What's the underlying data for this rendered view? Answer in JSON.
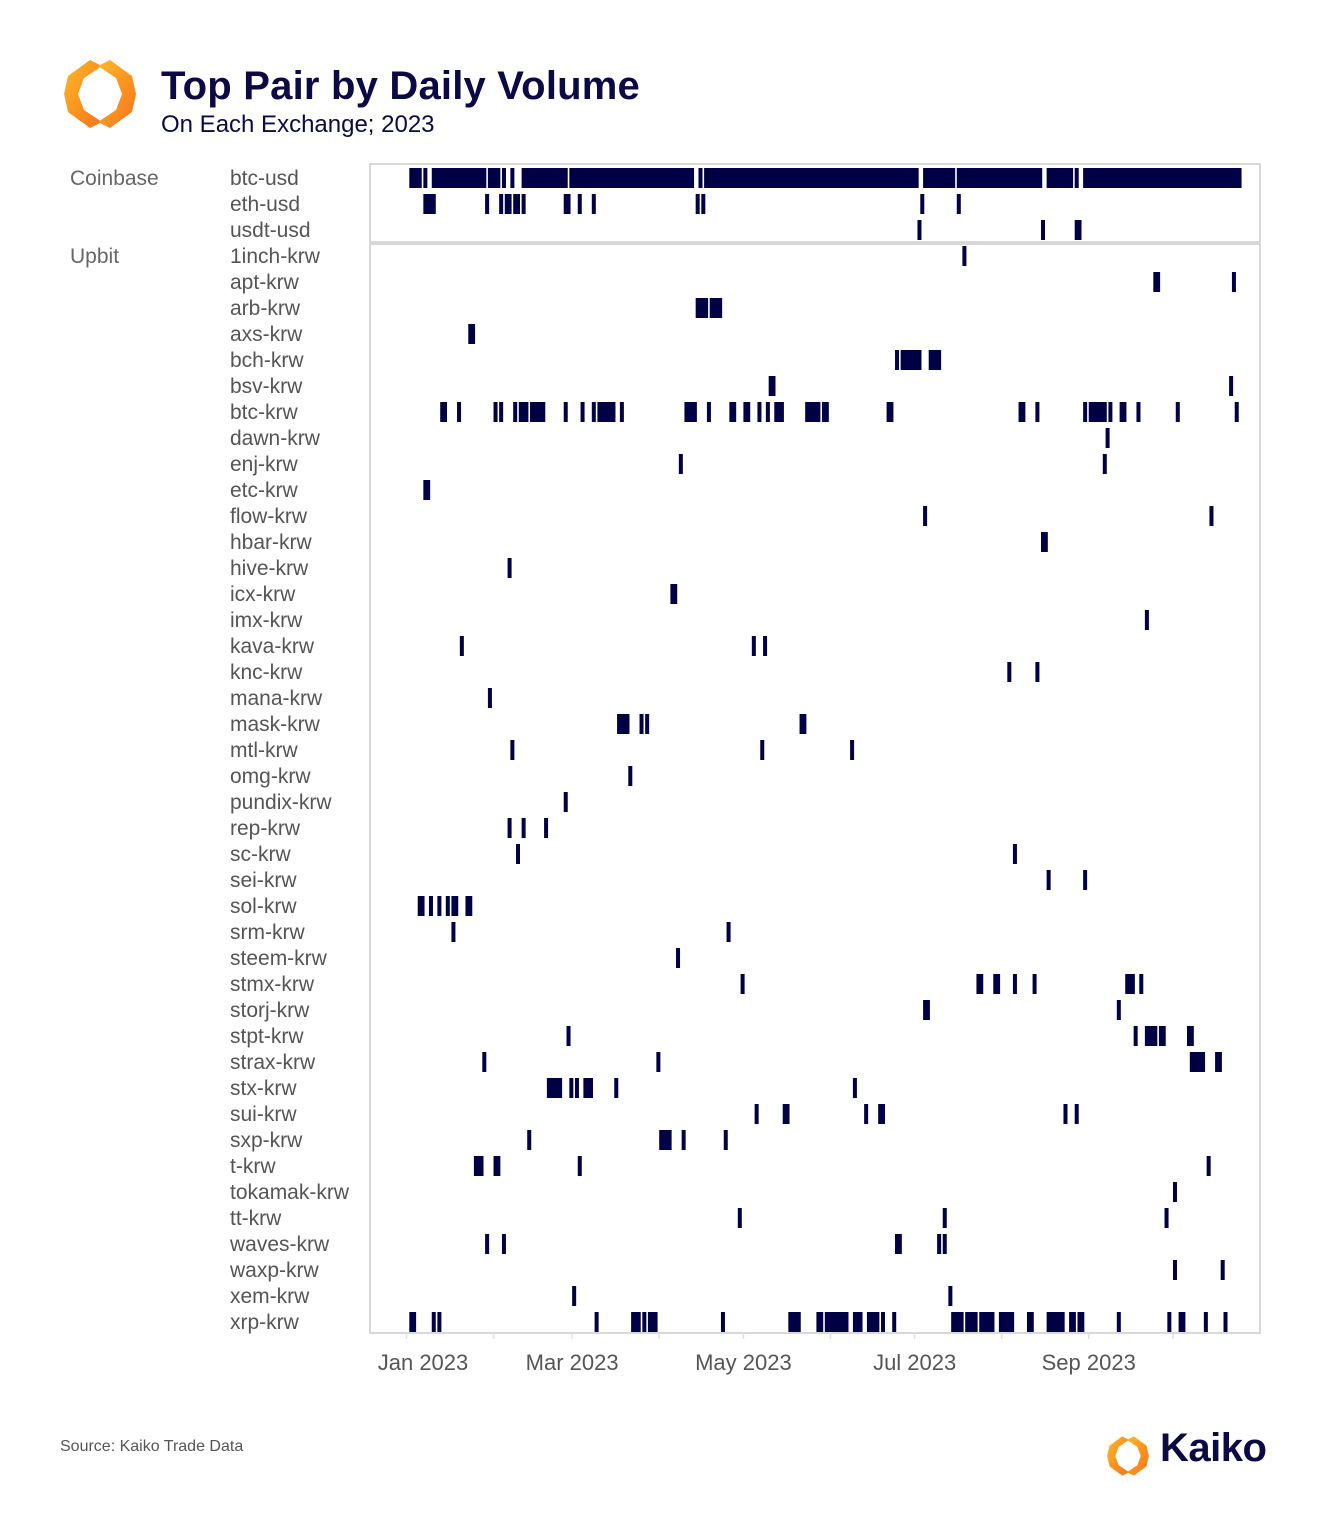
{
  "header": {
    "title": "Top Pair by Daily Volume",
    "subtitle": "On Each Exchange; 2023"
  },
  "footer": {
    "source": "Source: Kaiko Trade Data",
    "brand": "Kaiko"
  },
  "colors": {
    "bar": "#020044",
    "title": "#0b0a45",
    "label": "#555555",
    "frame": "#cccccc",
    "logo_light": "#fdb927",
    "logo_dark": "#f7731c"
  },
  "chart_data": {
    "type": "heatmap",
    "title": "Top Pair by Daily Volume",
    "subtitle": "On Each Exchange; 2023",
    "xlabel": "",
    "ylabel": "",
    "day_origin": "2023-01-01",
    "segment_format": "[start_day_index, length_in_days]",
    "x_ticks": [
      {
        "label": "Jan 2023",
        "day": 0
      },
      {
        "label": "Mar 2023",
        "day": 59
      },
      {
        "label": "May 2023",
        "day": 120
      },
      {
        "label": "Jul 2023",
        "day": 181
      },
      {
        "label": "Sep 2023",
        "day": 243
      }
    ],
    "month_starts": [
      0,
      31,
      59,
      90,
      120,
      151,
      181,
      212,
      243,
      273
    ],
    "xlim_days": [
      -13,
      304
    ],
    "groups": [
      {
        "exchange": "Coinbase",
        "rows": [
          {
            "pair": "btc-usd",
            "segments": [
              [
                1,
                4
              ],
              [
                6,
                1
              ],
              [
                9,
                19
              ],
              [
                29,
                4
              ],
              [
                34,
                1
              ],
              [
                37,
                1
              ],
              [
                41,
                16
              ],
              [
                58,
                44
              ],
              [
                104,
                1
              ],
              [
                106,
                76
              ],
              [
                184,
                11
              ],
              [
                196,
                30
              ],
              [
                228,
                9
              ],
              [
                238,
                1
              ],
              [
                241,
                56
              ]
            ]
          },
          {
            "pair": "eth-usd",
            "segments": [
              [
                6,
                4
              ],
              [
                28,
                1
              ],
              [
                33,
                1
              ],
              [
                35,
                2
              ],
              [
                38,
                2
              ],
              [
                41,
                1
              ],
              [
                56,
                2
              ],
              [
                61,
                1
              ],
              [
                66,
                1
              ],
              [
                103,
                1
              ],
              [
                105,
                1
              ],
              [
                183,
                1
              ],
              [
                196,
                1
              ]
            ]
          },
          {
            "pair": "usdt-usd",
            "segments": [
              [
                182,
                1
              ],
              [
                226,
                1
              ],
              [
                238,
                2
              ]
            ]
          }
        ]
      },
      {
        "exchange": "Upbit",
        "rows": [
          {
            "pair": "1inch-krw",
            "segments": [
              [
                198,
                1
              ]
            ]
          },
          {
            "pair": "apt-krw",
            "segments": [
              [
                266,
                2
              ],
              [
                294,
                1
              ]
            ]
          },
          {
            "pair": "arb-krw",
            "segments": [
              [
                103,
                4
              ],
              [
                108,
                4
              ]
            ]
          },
          {
            "pair": "axs-krw",
            "segments": [
              [
                22,
                2
              ]
            ]
          },
          {
            "pair": "bch-krw",
            "segments": [
              [
                174,
                1
              ],
              [
                176,
                7
              ],
              [
                186,
                4
              ]
            ]
          },
          {
            "pair": "bsv-krw",
            "segments": [
              [
                129,
                2
              ],
              [
                293,
                1
              ]
            ]
          },
          {
            "pair": "btc-krw",
            "segments": [
              [
                12,
                2
              ],
              [
                18,
                1
              ],
              [
                31,
                1
              ],
              [
                33,
                1
              ],
              [
                38,
                1
              ],
              [
                40,
                3
              ],
              [
                44,
                5
              ],
              [
                56,
                1
              ],
              [
                62,
                1
              ],
              [
                66,
                1
              ],
              [
                68,
                6
              ],
              [
                76,
                1
              ],
              [
                99,
                4
              ],
              [
                107,
                1
              ],
              [
                115,
                2
              ],
              [
                120,
                2
              ],
              [
                125,
                1
              ],
              [
                128,
                1
              ],
              [
                131,
                3
              ],
              [
                142,
                5
              ],
              [
                148,
                2
              ],
              [
                171,
                2
              ],
              [
                218,
                2
              ],
              [
                224,
                1
              ],
              [
                241,
                1
              ],
              [
                243,
                6
              ],
              [
                250,
                1
              ],
              [
                254,
                2
              ],
              [
                260,
                1
              ],
              [
                274,
                1
              ],
              [
                295,
                1
              ]
            ]
          },
          {
            "pair": "dawn-krw",
            "segments": [
              [
                249,
                1
              ]
            ]
          },
          {
            "pair": "enj-krw",
            "segments": [
              [
                97,
                1
              ],
              [
                248,
                1
              ]
            ]
          },
          {
            "pair": "etc-krw",
            "segments": [
              [
                6,
                2
              ]
            ]
          },
          {
            "pair": "flow-krw",
            "segments": [
              [
                184,
                1
              ],
              [
                286,
                1
              ]
            ]
          },
          {
            "pair": "hbar-krw",
            "segments": [
              [
                226,
                2
              ]
            ]
          },
          {
            "pair": "hive-krw",
            "segments": [
              [
                36,
                1
              ]
            ]
          },
          {
            "pair": "icx-krw",
            "segments": [
              [
                94,
                2
              ]
            ]
          },
          {
            "pair": "imx-krw",
            "segments": [
              [
                263,
                1
              ]
            ]
          },
          {
            "pair": "kava-krw",
            "segments": [
              [
                19,
                1
              ],
              [
                123,
                1
              ],
              [
                127,
                1
              ]
            ]
          },
          {
            "pair": "knc-krw",
            "segments": [
              [
                214,
                1
              ],
              [
                224,
                1
              ]
            ]
          },
          {
            "pair": "mana-krw",
            "segments": [
              [
                29,
                1
              ]
            ]
          },
          {
            "pair": "mask-krw",
            "segments": [
              [
                75,
                4
              ],
              [
                83,
                1
              ],
              [
                85,
                1
              ],
              [
                140,
                2
              ]
            ]
          },
          {
            "pair": "mtl-krw",
            "segments": [
              [
                37,
                1
              ],
              [
                126,
                1
              ],
              [
                158,
                1
              ]
            ]
          },
          {
            "pair": "omg-krw",
            "segments": [
              [
                79,
                1
              ]
            ]
          },
          {
            "pair": "pundix-krw",
            "segments": [
              [
                56,
                1
              ]
            ]
          },
          {
            "pair": "rep-krw",
            "segments": [
              [
                36,
                1
              ],
              [
                41,
                1
              ],
              [
                49,
                1
              ]
            ]
          },
          {
            "pair": "sc-krw",
            "segments": [
              [
                39,
                1
              ],
              [
                216,
                1
              ]
            ]
          },
          {
            "pair": "sei-krw",
            "segments": [
              [
                228,
                1
              ],
              [
                241,
                1
              ]
            ]
          },
          {
            "pair": "sol-krw",
            "segments": [
              [
                4,
                2
              ],
              [
                8,
                1
              ],
              [
                11,
                1
              ],
              [
                14,
                1
              ],
              [
                16,
                2
              ],
              [
                21,
                2
              ]
            ]
          },
          {
            "pair": "srm-krw",
            "segments": [
              [
                16,
                1
              ],
              [
                114,
                1
              ]
            ]
          },
          {
            "pair": "steem-krw",
            "segments": [
              [
                96,
                1
              ]
            ]
          },
          {
            "pair": "stmx-krw",
            "segments": [
              [
                119,
                1
              ],
              [
                203,
                2
              ],
              [
                209,
                2
              ],
              [
                216,
                1
              ],
              [
                223,
                1
              ],
              [
                256,
                3
              ],
              [
                261,
                1
              ]
            ]
          },
          {
            "pair": "storj-krw",
            "segments": [
              [
                184,
                2
              ],
              [
                253,
                1
              ]
            ]
          },
          {
            "pair": "stpt-krw",
            "segments": [
              [
                57,
                1
              ],
              [
                259,
                1
              ],
              [
                263,
                4
              ],
              [
                268,
                2
              ],
              [
                278,
                2
              ]
            ]
          },
          {
            "pair": "strax-krw",
            "segments": [
              [
                27,
                1
              ],
              [
                89,
                1
              ],
              [
                279,
                5
              ],
              [
                288,
                2
              ]
            ]
          },
          {
            "pair": "stx-krw",
            "segments": [
              [
                50,
                5
              ],
              [
                58,
                1
              ],
              [
                60,
                1
              ],
              [
                63,
                3
              ],
              [
                74,
                1
              ],
              [
                159,
                1
              ]
            ]
          },
          {
            "pair": "sui-krw",
            "segments": [
              [
                124,
                1
              ],
              [
                134,
                2
              ],
              [
                163,
                1
              ],
              [
                168,
                2
              ],
              [
                234,
                1
              ],
              [
                238,
                1
              ]
            ]
          },
          {
            "pair": "sxp-krw",
            "segments": [
              [
                43,
                1
              ],
              [
                90,
                4
              ],
              [
                98,
                1
              ],
              [
                113,
                1
              ]
            ]
          },
          {
            "pair": "t-krw",
            "segments": [
              [
                24,
                3
              ],
              [
                31,
                2
              ],
              [
                61,
                1
              ],
              [
                285,
                1
              ]
            ]
          },
          {
            "pair": "tokamak-krw",
            "segments": [
              [
                273,
                1
              ]
            ]
          },
          {
            "pair": "tt-krw",
            "segments": [
              [
                118,
                1
              ],
              [
                191,
                1
              ],
              [
                270,
                1
              ]
            ]
          },
          {
            "pair": "waves-krw",
            "segments": [
              [
                28,
                1
              ],
              [
                34,
                1
              ],
              [
                174,
                2
              ],
              [
                189,
                1
              ],
              [
                191,
                1
              ]
            ]
          },
          {
            "pair": "waxp-krw",
            "segments": [
              [
                273,
                1
              ],
              [
                290,
                1
              ]
            ]
          },
          {
            "pair": "xem-krw",
            "segments": [
              [
                59,
                1
              ],
              [
                193,
                1
              ]
            ]
          },
          {
            "pair": "xrp-krw",
            "segments": [
              [
                1,
                2
              ],
              [
                9,
                1
              ],
              [
                11,
                1
              ],
              [
                67,
                1
              ],
              [
                80,
                3
              ],
              [
                84,
                1
              ],
              [
                86,
                3
              ],
              [
                112,
                1
              ],
              [
                136,
                4
              ],
              [
                146,
                2
              ],
              [
                149,
                8
              ],
              [
                159,
                3
              ],
              [
                164,
                4
              ],
              [
                169,
                1
              ],
              [
                173,
                1
              ],
              [
                194,
                4
              ],
              [
                199,
                4
              ],
              [
                204,
                5
              ],
              [
                211,
                5
              ],
              [
                221,
                2
              ],
              [
                228,
                6
              ],
              [
                236,
                2
              ],
              [
                239,
                2
              ],
              [
                253,
                1
              ],
              [
                271,
                1
              ],
              [
                275,
                2
              ],
              [
                284,
                1
              ],
              [
                291,
                1
              ]
            ]
          }
        ]
      }
    ]
  }
}
